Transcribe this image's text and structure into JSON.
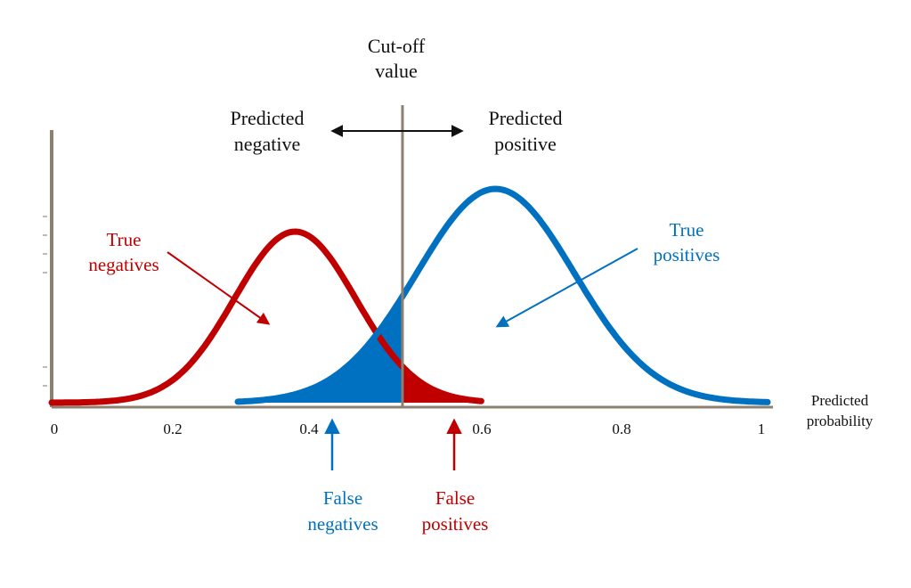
{
  "colors": {
    "negative": "#c00000",
    "positive": "#0070c0",
    "axis": "#8c8070",
    "text": "#111111"
  },
  "cutoff": {
    "line1": "Cut-off",
    "line2": "value",
    "value": 0.49
  },
  "regions": {
    "left_line1": "Predicted",
    "left_line2": "negative",
    "right_line1": "Predicted",
    "right_line2": "positive"
  },
  "annotations": {
    "true_negatives": {
      "line1": "True",
      "line2": "negatives"
    },
    "true_positives": {
      "line1": "True",
      "line2": "positives"
    },
    "false_negatives": {
      "line1": "False",
      "line2": "negatives"
    },
    "false_positives": {
      "line1": "False",
      "line2": "positives"
    }
  },
  "axis": {
    "xlabel_line1": "Predicted",
    "xlabel_line2": "probability",
    "ticks": [
      "0",
      "0.2",
      "0.4",
      "0.6",
      "0.8",
      "1"
    ],
    "tick_values": [
      0,
      0.2,
      0.4,
      0.6,
      0.8,
      1
    ],
    "xlim": [
      0,
      1
    ]
  },
  "distributions": {
    "negative": {
      "mean": 0.34,
      "sd": 0.085,
      "peak": 0.8,
      "range": [
        0,
        0.6
      ]
    },
    "positive": {
      "mean": 0.62,
      "sd": 0.11,
      "peak": 1.0,
      "range": [
        0.26,
        1.0
      ]
    }
  }
}
